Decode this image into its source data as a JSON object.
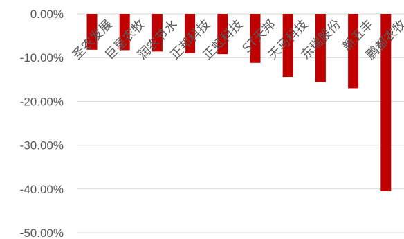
{
  "chart_data": {
    "type": "bar",
    "title": "",
    "xlabel": "",
    "ylabel": "",
    "categories": [
      "圣农发展",
      "巨星农牧",
      "润农节水",
      "正邦科技",
      "正虹科技",
      "ST天邦",
      "天马科技",
      "东瑞股份",
      "新五丰",
      "鹏都农牧"
    ],
    "values": [
      -8.2,
      -8.3,
      -8.6,
      -9.0,
      -9.2,
      -11.2,
      -14.4,
      -15.6,
      -17.0,
      -40.5
    ],
    "ylim": [
      -50,
      0
    ],
    "yticks": [
      0,
      -10,
      -20,
      -30,
      -40,
      -50
    ],
    "ytick_labels": [
      "0.00%",
      "-10.00%",
      "-20.00%",
      "-30.00%",
      "-40.00%",
      "-50.00%"
    ],
    "grid": true,
    "bar_color": "#c00000"
  }
}
